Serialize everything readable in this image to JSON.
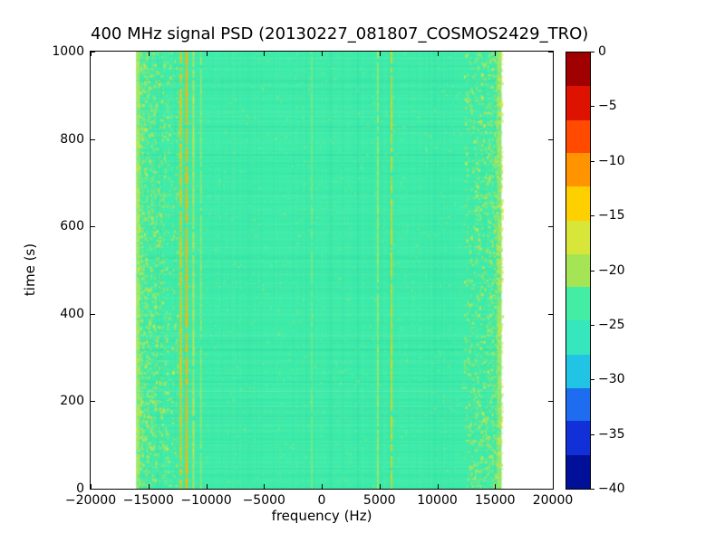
{
  "chart_data": {
    "type": "heatmap",
    "title": "400 MHz signal PSD (20130227_081807_COSMOS2429_TRO)",
    "xlabel": "frequency (Hz)",
    "ylabel": "time (s)",
    "xlim": [
      -20000,
      20000
    ],
    "ylim": [
      0,
      1000
    ],
    "x_ticks": [
      -20000,
      -15000,
      -10000,
      -5000,
      0,
      5000,
      10000,
      15000,
      20000
    ],
    "x_tick_labels": [
      "−20000",
      "−15000",
      "−10000",
      "−5000",
      "0",
      "5000",
      "10000",
      "15000",
      "20000"
    ],
    "y_ticks": [
      0,
      200,
      400,
      600,
      800,
      1000
    ],
    "y_tick_labels": [
      "0",
      "200",
      "400",
      "600",
      "800",
      "1000"
    ],
    "grid": false,
    "legend": false,
    "data_extent_hz": [
      -16050,
      15550
    ],
    "background_level_db": -22,
    "background_color": "#3deca9",
    "colorbar": {
      "range_db": [
        0,
        -40
      ],
      "tick_values": [
        0,
        -5,
        -10,
        -15,
        -20,
        -25,
        -30,
        -35,
        -40
      ],
      "tick_labels": [
        "0",
        "−5",
        "−10",
        "−15",
        "−20",
        "−25",
        "−30",
        "−35",
        "−40"
      ],
      "segments": [
        {
          "from": 0,
          "to": -3.1,
          "color": "#a00000"
        },
        {
          "from": -3.1,
          "to": -6.2,
          "color": "#dd1300"
        },
        {
          "from": -6.2,
          "to": -9.2,
          "color": "#ff4a00"
        },
        {
          "from": -9.2,
          "to": -12.3,
          "color": "#ff9400"
        },
        {
          "from": -12.3,
          "to": -15.4,
          "color": "#ffd000"
        },
        {
          "from": -15.4,
          "to": -18.5,
          "color": "#d8e63a"
        },
        {
          "from": -18.5,
          "to": -21.5,
          "color": "#a4e455"
        },
        {
          "from": -21.5,
          "to": -24.6,
          "color": "#44eda4"
        },
        {
          "from": -24.6,
          "to": -27.7,
          "color": "#36e6bc"
        },
        {
          "from": -27.7,
          "to": -30.8,
          "color": "#22c4e6"
        },
        {
          "from": -30.8,
          "to": -33.8,
          "color": "#1e6cf0"
        },
        {
          "from": -33.8,
          "to": -36.9,
          "color": "#1130d8"
        },
        {
          "from": -36.9,
          "to": -40,
          "color": "#001099"
        }
      ]
    },
    "vertical_features": [
      {
        "freq_hz": -15900,
        "width_hz": 300,
        "color": "#c9e746",
        "alpha": 0.75
      },
      {
        "freq_hz": -12200,
        "width_hz": 210,
        "color": "#ffc400",
        "alpha": 0.95
      },
      {
        "freq_hz": -11700,
        "width_hz": 260,
        "color": "#ffb600",
        "alpha": 0.95
      },
      {
        "freq_hz": -11100,
        "width_hz": 160,
        "color": "#e9e133",
        "alpha": 0.85
      },
      {
        "freq_hz": -10450,
        "width_hz": 140,
        "color": "#d9e636",
        "alpha": 0.65
      },
      {
        "freq_hz": -850,
        "width_hz": 120,
        "color": "#cce84a",
        "alpha": 0.55
      },
      {
        "freq_hz": 4850,
        "width_hz": 140,
        "color": "#e6e632",
        "alpha": 0.7
      },
      {
        "freq_hz": 6050,
        "width_hz": 170,
        "color": "#ffd400",
        "alpha": 0.85
      },
      {
        "freq_hz": 15350,
        "width_hz": 320,
        "color": "#c8e748",
        "alpha": 0.7
      }
    ],
    "speckle_bands": [
      {
        "from_hz": -16050,
        "to_hz": -13300,
        "density": 0.5,
        "bias": "outer-left"
      },
      {
        "from_hz": -13300,
        "to_hz": -12400,
        "density": 0.15,
        "bias": "none"
      },
      {
        "from_hz": 12300,
        "to_hz": 15550,
        "density": 0.45,
        "bias": "outer-right"
      }
    ],
    "speckle_colors": [
      "#cfe743",
      "#b9e352",
      "#a9e362",
      "#dcea38"
    ]
  }
}
